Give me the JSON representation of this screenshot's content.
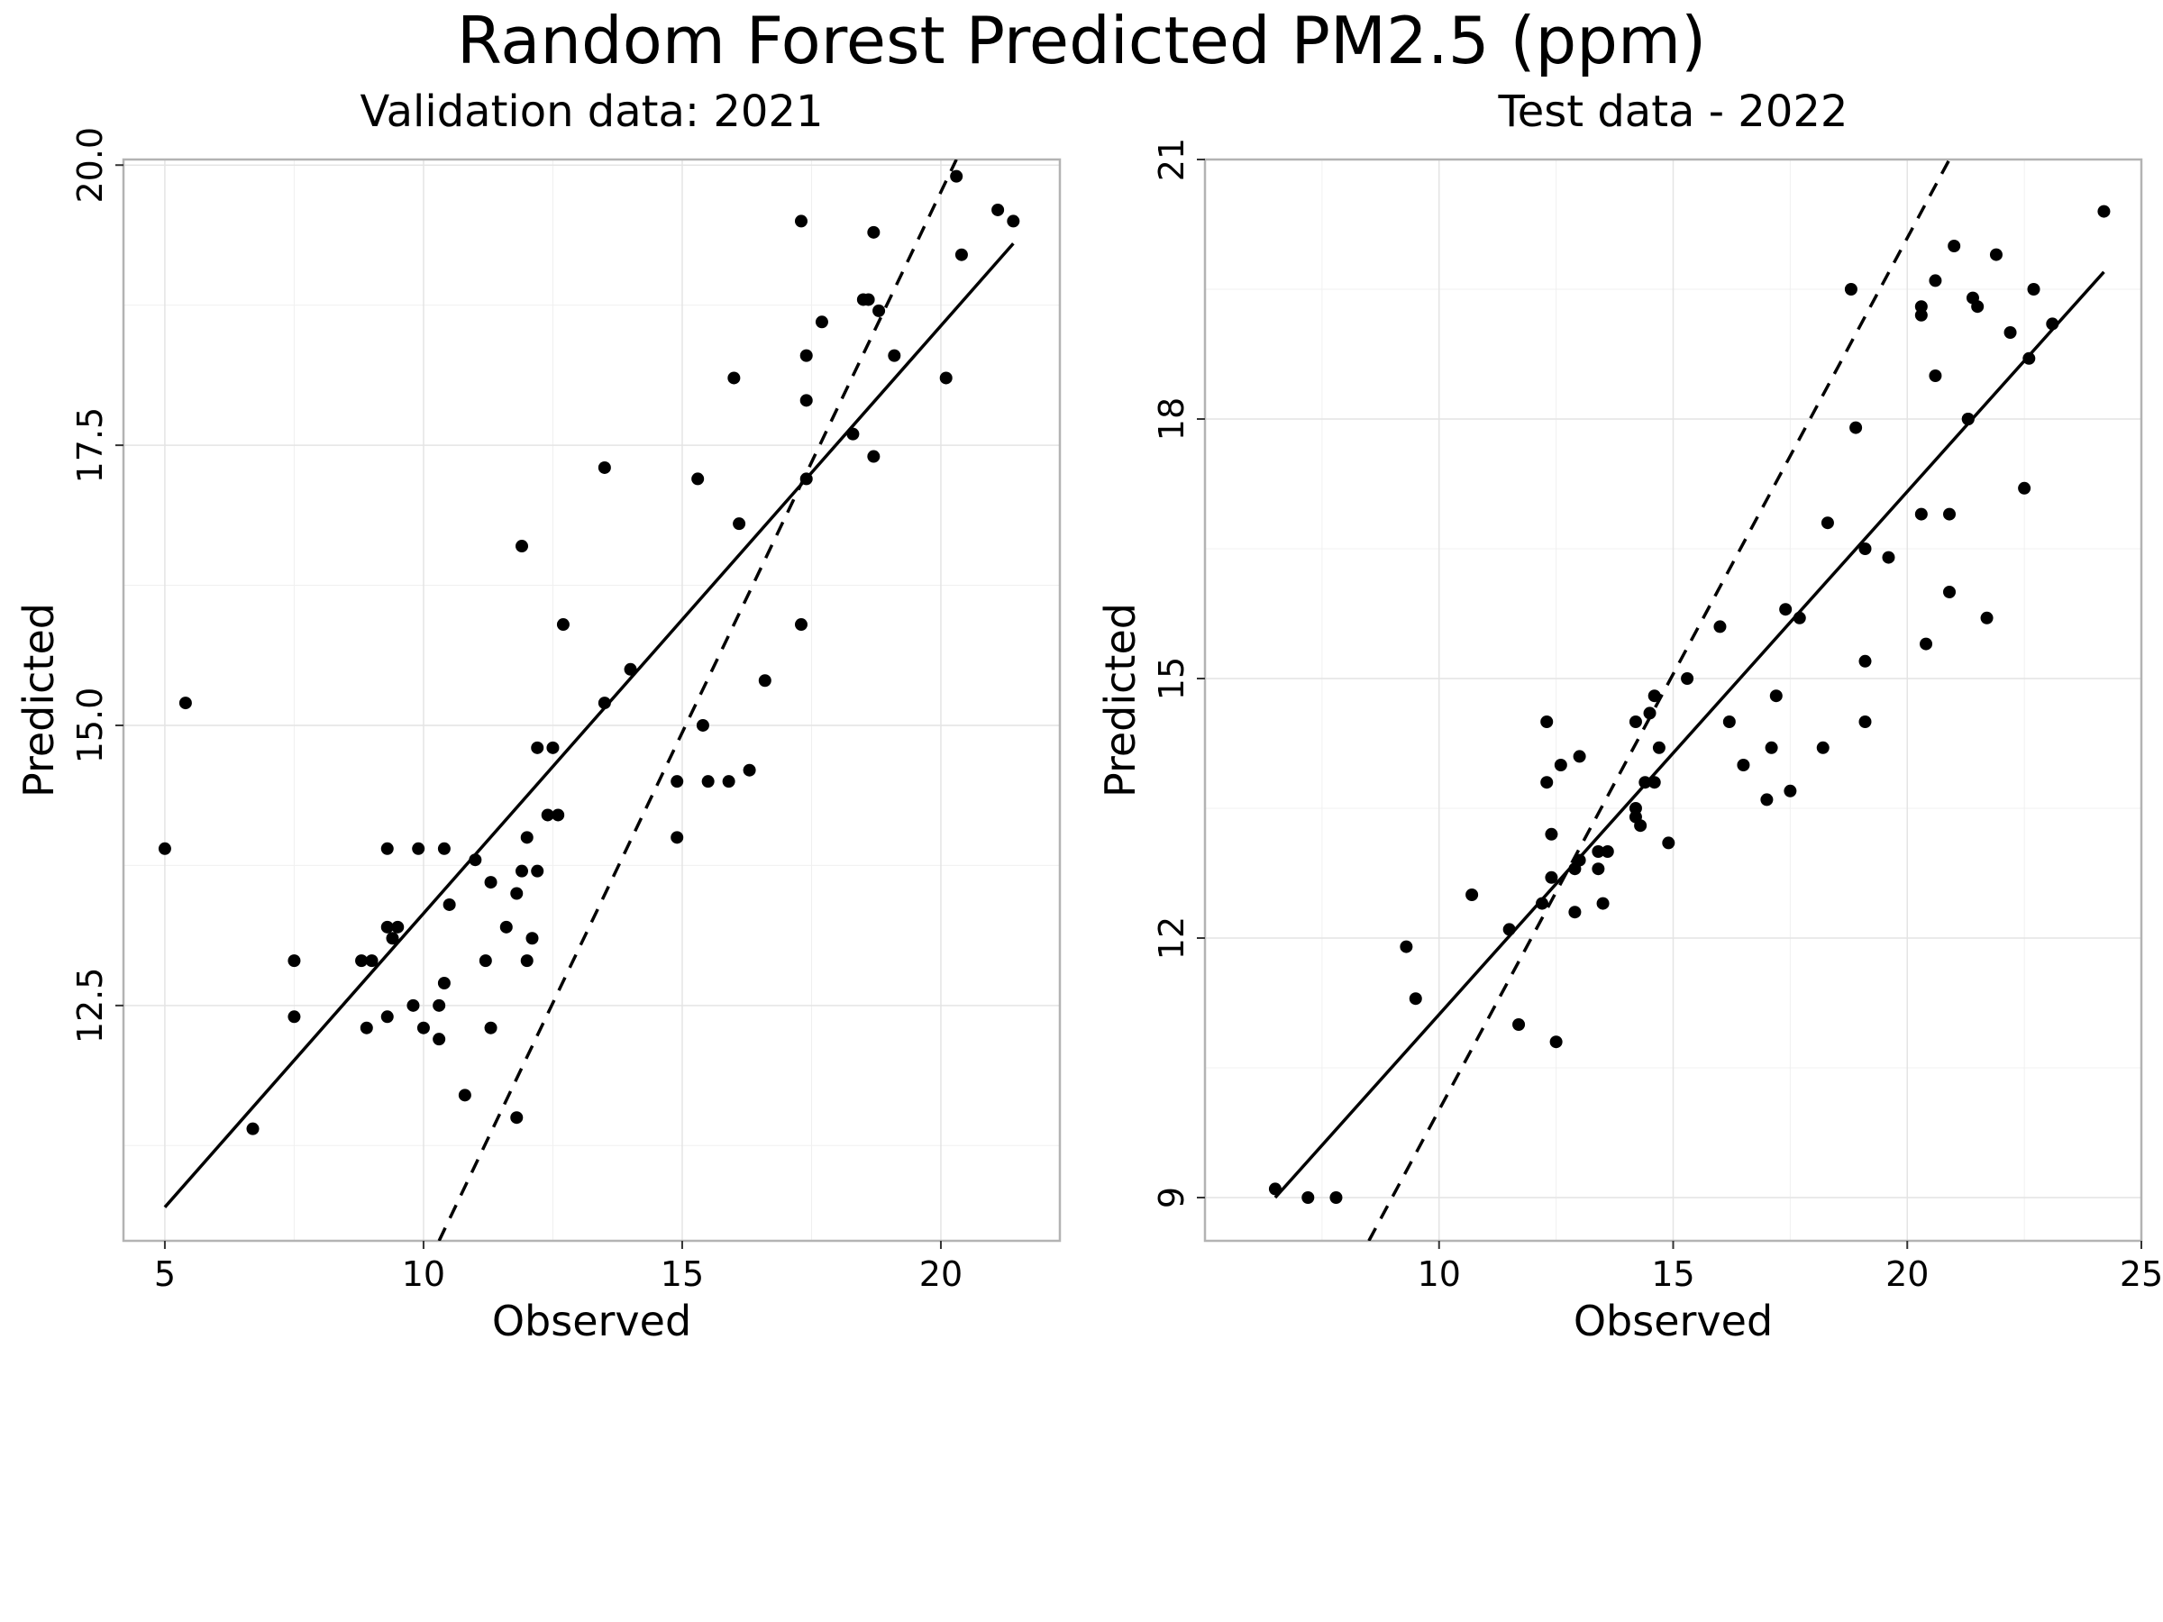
{
  "title": "Random Forest Predicted PM2.5 (ppm)",
  "chart_data": [
    {
      "type": "scatter",
      "title": "Validation data: 2021",
      "xlabel": "Observed",
      "ylabel": "Predicted",
      "xlim": [
        4.2,
        22.3
      ],
      "ylim": [
        10.4,
        20.05
      ],
      "xticks": [
        5,
        10,
        15,
        20
      ],
      "xtick_labels": [
        "5",
        "10",
        "15",
        "20"
      ],
      "yticks": [
        12.5,
        15.0,
        17.5,
        20.0
      ],
      "ytick_labels": [
        "12.5",
        "15.0",
        "17.5",
        "20.0"
      ],
      "grid": true,
      "points": [
        [
          5.0,
          13.9
        ],
        [
          5.4,
          15.2
        ],
        [
          6.7,
          11.4
        ],
        [
          7.5,
          12.4
        ],
        [
          7.5,
          12.9
        ],
        [
          8.8,
          12.9
        ],
        [
          8.9,
          12.3
        ],
        [
          9.0,
          12.9
        ],
        [
          9.3,
          13.2
        ],
        [
          9.3,
          12.4
        ],
        [
          9.3,
          13.9
        ],
        [
          9.4,
          13.1
        ],
        [
          9.5,
          13.2
        ],
        [
          9.8,
          12.5
        ],
        [
          9.9,
          13.9
        ],
        [
          10.0,
          12.3
        ],
        [
          10.3,
          12.5
        ],
        [
          10.3,
          12.2
        ],
        [
          10.4,
          13.9
        ],
        [
          10.4,
          12.7
        ],
        [
          10.5,
          13.4
        ],
        [
          10.8,
          11.7
        ],
        [
          11.0,
          13.8
        ],
        [
          11.2,
          12.9
        ],
        [
          11.3,
          12.3
        ],
        [
          11.3,
          13.6
        ],
        [
          11.6,
          13.2
        ],
        [
          11.8,
          11.5
        ],
        [
          11.8,
          13.5
        ],
        [
          11.9,
          13.7
        ],
        [
          11.9,
          16.6
        ],
        [
          12.0,
          12.9
        ],
        [
          12.0,
          14.0
        ],
        [
          12.1,
          13.1
        ],
        [
          12.2,
          13.7
        ],
        [
          12.2,
          14.8
        ],
        [
          12.4,
          14.2
        ],
        [
          12.5,
          14.8
        ],
        [
          12.6,
          14.2
        ],
        [
          12.7,
          15.9
        ],
        [
          13.5,
          17.3
        ],
        [
          13.5,
          15.2
        ],
        [
          14.0,
          15.5
        ],
        [
          14.9,
          14.0
        ],
        [
          14.9,
          14.5
        ],
        [
          15.3,
          17.2
        ],
        [
          15.4,
          15.0
        ],
        [
          15.5,
          14.5
        ],
        [
          15.9,
          14.5
        ],
        [
          16.0,
          18.1
        ],
        [
          16.1,
          16.8
        ],
        [
          16.3,
          14.6
        ],
        [
          16.6,
          15.4
        ],
        [
          17.3,
          15.9
        ],
        [
          17.3,
          19.5
        ],
        [
          17.4,
          17.2
        ],
        [
          17.4,
          18.3
        ],
        [
          17.4,
          17.9
        ],
        [
          17.7,
          18.6
        ],
        [
          18.3,
          17.6
        ],
        [
          18.5,
          18.8
        ],
        [
          18.6,
          18.8
        ],
        [
          18.7,
          19.4
        ],
        [
          18.7,
          17.4
        ],
        [
          18.8,
          18.7
        ],
        [
          19.1,
          18.3
        ],
        [
          20.1,
          18.1
        ],
        [
          20.3,
          19.9
        ],
        [
          20.4,
          19.2
        ],
        [
          21.1,
          19.6
        ],
        [
          21.4,
          19.5
        ]
      ],
      "fit_line": [
        [
          5.0,
          10.7
        ],
        [
          21.4,
          19.3
        ]
      ],
      "dashed_line": [
        [
          10.3,
          10.4
        ],
        [
          20.3,
          20.05
        ]
      ]
    },
    {
      "type": "scatter",
      "title": "Test data - 2022",
      "xlabel": "Observed",
      "ylabel": "Predicted",
      "xlim": [
        5.0,
        25.0
      ],
      "ylim": [
        8.5,
        21.0
      ],
      "xticks": [
        10,
        15,
        20,
        25
      ],
      "xtick_labels": [
        "10",
        "15",
        "20",
        "25"
      ],
      "yticks": [
        9,
        12,
        15,
        18,
        21
      ],
      "ytick_labels": [
        "9",
        "12",
        "15",
        "18",
        "21"
      ],
      "grid": true,
      "points": [
        [
          6.5,
          9.1
        ],
        [
          7.2,
          9.0
        ],
        [
          7.8,
          9.0
        ],
        [
          9.3,
          11.9
        ],
        [
          9.5,
          11.3
        ],
        [
          10.7,
          12.5
        ],
        [
          11.5,
          12.1
        ],
        [
          11.7,
          11.0
        ],
        [
          12.2,
          12.4
        ],
        [
          12.3,
          14.5
        ],
        [
          12.3,
          13.8
        ],
        [
          12.4,
          13.2
        ],
        [
          12.4,
          12.7
        ],
        [
          12.5,
          10.8
        ],
        [
          12.6,
          14.0
        ],
        [
          12.9,
          12.3
        ],
        [
          12.9,
          12.8
        ],
        [
          13.0,
          14.1
        ],
        [
          13.0,
          12.9
        ],
        [
          13.4,
          13.0
        ],
        [
          13.4,
          12.8
        ],
        [
          13.5,
          12.4
        ],
        [
          13.6,
          13.0
        ],
        [
          14.2,
          13.4
        ],
        [
          14.2,
          13.5
        ],
        [
          14.2,
          14.5
        ],
        [
          14.3,
          13.3
        ],
        [
          14.4,
          13.8
        ],
        [
          14.5,
          14.6
        ],
        [
          14.6,
          14.8
        ],
        [
          14.6,
          13.8
        ],
        [
          14.7,
          14.2
        ],
        [
          14.9,
          13.1
        ],
        [
          15.3,
          15.0
        ],
        [
          16.0,
          15.6
        ],
        [
          16.2,
          14.5
        ],
        [
          16.5,
          14.0
        ],
        [
          17.0,
          13.6
        ],
        [
          17.1,
          14.2
        ],
        [
          17.2,
          14.8
        ],
        [
          17.4,
          15.8
        ],
        [
          17.5,
          13.7
        ],
        [
          17.7,
          15.7
        ],
        [
          18.2,
          14.2
        ],
        [
          18.3,
          16.8
        ],
        [
          18.8,
          19.5
        ],
        [
          18.9,
          17.9
        ],
        [
          19.1,
          16.5
        ],
        [
          19.1,
          15.2
        ],
        [
          19.1,
          14.5
        ],
        [
          19.6,
          16.4
        ],
        [
          20.3,
          16.9
        ],
        [
          20.3,
          19.3
        ],
        [
          20.3,
          19.2
        ],
        [
          20.4,
          15.4
        ],
        [
          20.6,
          18.5
        ],
        [
          20.6,
          19.6
        ],
        [
          20.9,
          16.9
        ],
        [
          20.9,
          16.0
        ],
        [
          21.0,
          20.0
        ],
        [
          21.3,
          18.0
        ],
        [
          21.3,
          18.0
        ],
        [
          21.4,
          19.4
        ],
        [
          21.5,
          19.3
        ],
        [
          21.7,
          15.7
        ],
        [
          21.9,
          19.9
        ],
        [
          22.2,
          19.0
        ],
        [
          22.5,
          17.2
        ],
        [
          22.6,
          18.7
        ],
        [
          22.7,
          19.5
        ],
        [
          23.1,
          19.1
        ],
        [
          24.2,
          20.4
        ]
      ],
      "fit_line": [
        [
          6.5,
          9.0
        ],
        [
          24.2,
          19.7
        ]
      ],
      "dashed_line": [
        [
          8.5,
          8.5
        ],
        [
          20.9,
          21.0
        ]
      ]
    }
  ]
}
